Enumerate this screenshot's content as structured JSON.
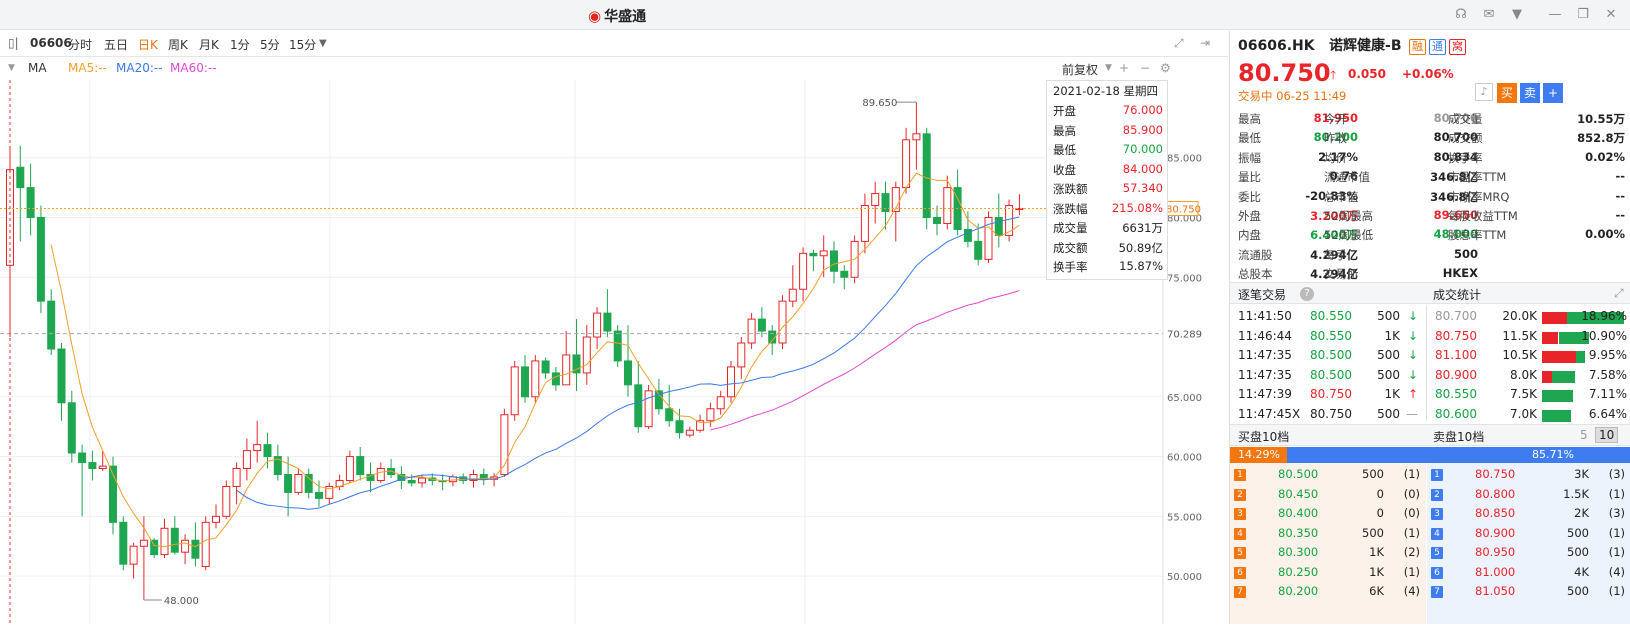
{
  "titlebar": {
    "brand": "华盛通",
    "brand_mark": "logo-swirl"
  },
  "toolbar": {
    "code": "06606",
    "periods": [
      "分时",
      "五日",
      "日K",
      "周K",
      "月K",
      "1分",
      "5分",
      "15分"
    ],
    "active_period": "日K",
    "adjust": "前复权"
  },
  "ma": {
    "label": "MA",
    "ma5": "MA5:--",
    "ma20": "MA20:--",
    "ma60": "MA60:--",
    "colors": {
      "ma5": "#f0a02a",
      "ma20": "#3a79e8",
      "ma60": "#e34bd0"
    }
  },
  "tooltip": {
    "date": "2021-02-18 星期四",
    "rows": [
      {
        "k": "开盘",
        "v": "76.000",
        "c": "red"
      },
      {
        "k": "最高",
        "v": "85.900",
        "c": "red"
      },
      {
        "k": "最低",
        "v": "70.000",
        "c": "green"
      },
      {
        "k": "收盘",
        "v": "84.000",
        "c": "red"
      },
      {
        "k": "涨跌额",
        "v": "57.340",
        "c": "red"
      },
      {
        "k": "涨跌幅",
        "v": "215.08%",
        "c": "red"
      },
      {
        "k": "成交量",
        "v": "6631万",
        "c": "dark"
      },
      {
        "k": "成交额",
        "v": "50.89亿",
        "c": "dark"
      },
      {
        "k": "换手率",
        "v": "15.87%",
        "c": "dark"
      }
    ]
  },
  "chart_data": {
    "type": "candlestick",
    "y_ticks": [
      85.0,
      80.0,
      75.0,
      65.0,
      60.0,
      55.0,
      50.0
    ],
    "y_tick_labels": [
      "85.000",
      "80.000",
      "75.000",
      "65.000",
      "60.000",
      "55.000",
      "50.000"
    ],
    "ylim": [
      47.5,
      91
    ],
    "current_price_label": "80.750",
    "ref_line_label": "70.289",
    "high_label": "89.650",
    "low_label": "48.000",
    "colors": {
      "up": "#e8242a",
      "down": "#1ea651"
    },
    "candles": [
      [
        76.0,
        85.9,
        70.0,
        84.0
      ],
      [
        84.2,
        86.0,
        78.0,
        82.5
      ],
      [
        82.5,
        84.5,
        78.5,
        80.0
      ],
      [
        80.0,
        81.0,
        72.0,
        73.0
      ],
      [
        73.0,
        74.0,
        68.5,
        69.0
      ],
      [
        69.0,
        69.5,
        63.0,
        64.5
      ],
      [
        64.5,
        65.5,
        59.5,
        60.3
      ],
      [
        60.3,
        61.0,
        55.0,
        59.5
      ],
      [
        59.5,
        60.5,
        58.0,
        59.0
      ],
      [
        59.0,
        60.5,
        58.8,
        59.2
      ],
      [
        59.2,
        60.0,
        53.5,
        54.5
      ],
      [
        54.5,
        55.0,
        50.5,
        51.0
      ],
      [
        51.0,
        52.8,
        49.8,
        52.5
      ],
      [
        52.5,
        55.0,
        48.0,
        53.0
      ],
      [
        53.0,
        53.2,
        51.5,
        51.8
      ],
      [
        51.8,
        54.8,
        51.5,
        54.0
      ],
      [
        54.0,
        55.0,
        51.8,
        52.0
      ],
      [
        52.0,
        53.5,
        51.0,
        53.0
      ],
      [
        53.0,
        54.5,
        50.8,
        51.5
      ],
      [
        50.8,
        55.0,
        50.5,
        54.5
      ],
      [
        54.5,
        56.0,
        54.0,
        55.0
      ],
      [
        55.0,
        58.0,
        54.8,
        57.5
      ],
      [
        57.5,
        59.5,
        56.0,
        59.0
      ],
      [
        59.0,
        61.5,
        58.0,
        60.5
      ],
      [
        60.5,
        63.0,
        59.5,
        61.0
      ],
      [
        61.0,
        62.0,
        59.0,
        60.0
      ],
      [
        60.0,
        61.0,
        58.0,
        58.5
      ],
      [
        58.5,
        60.0,
        55.0,
        57.0
      ],
      [
        57.0,
        59.0,
        56.8,
        58.5
      ],
      [
        58.5,
        59.0,
        56.5,
        57.0
      ],
      [
        57.0,
        58.0,
        55.8,
        56.5
      ],
      [
        56.5,
        57.8,
        56.0,
        57.5
      ],
      [
        57.5,
        58.5,
        57.2,
        58.0
      ],
      [
        58.0,
        60.5,
        57.8,
        60.0
      ],
      [
        60.0,
        60.8,
        58.0,
        58.5
      ],
      [
        58.5,
        59.5,
        57.0,
        58.0
      ],
      [
        58.0,
        59.5,
        57.8,
        59.0
      ],
      [
        59.0,
        59.8,
        58.2,
        58.5
      ],
      [
        58.5,
        59.2,
        57.3,
        58.0
      ],
      [
        58.0,
        58.5,
        57.5,
        57.8
      ],
      [
        57.8,
        58.5,
        57.4,
        58.2
      ],
      [
        58.2,
        58.6,
        57.6,
        58.0
      ],
      [
        58.0,
        58.5,
        57.2,
        57.9
      ],
      [
        57.9,
        58.5,
        57.5,
        58.3
      ],
      [
        58.3,
        58.6,
        57.7,
        58.0
      ],
      [
        58.0,
        58.9,
        57.4,
        58.5
      ],
      [
        58.5,
        59.0,
        57.6,
        58.1
      ],
      [
        58.1,
        58.6,
        57.5,
        58.3
      ],
      [
        58.5,
        64.0,
        58.3,
        63.5
      ],
      [
        63.5,
        68.0,
        63.0,
        67.5
      ],
      [
        67.5,
        68.5,
        64.5,
        65.0
      ],
      [
        65.0,
        68.5,
        64.5,
        68.0
      ],
      [
        68.0,
        68.3,
        66.5,
        67.0
      ],
      [
        67.0,
        67.5,
        65.5,
        66.0
      ],
      [
        66.0,
        70.5,
        66.0,
        68.5
      ],
      [
        68.5,
        71.5,
        65.5,
        67.0
      ],
      [
        67.0,
        71.0,
        66.0,
        70.0
      ],
      [
        70.0,
        72.5,
        69.0,
        72.0
      ],
      [
        72.0,
        74.0,
        70.0,
        70.5
      ],
      [
        70.5,
        71.0,
        67.5,
        68.0
      ],
      [
        68.0,
        71.0,
        65.0,
        66.0
      ],
      [
        66.0,
        68.0,
        62.0,
        62.5
      ],
      [
        62.5,
        66.0,
        62.3,
        65.5
      ],
      [
        65.5,
        66.5,
        63.5,
        64.0
      ],
      [
        64.0,
        66.0,
        62.5,
        63.0
      ],
      [
        63.0,
        64.0,
        61.5,
        62.0
      ],
      [
        61.8,
        62.5,
        61.6,
        62.2
      ],
      [
        62.2,
        63.5,
        62.0,
        63.0
      ],
      [
        63.0,
        64.5,
        62.5,
        64.0
      ],
      [
        64.0,
        65.5,
        63.5,
        65.0
      ],
      [
        65.0,
        68.0,
        64.5,
        67.5
      ],
      [
        67.5,
        70.0,
        66.5,
        69.5
      ],
      [
        69.5,
        72.0,
        69.0,
        71.5
      ],
      [
        71.5,
        72.5,
        70.0,
        70.5
      ],
      [
        70.5,
        71.0,
        68.5,
        69.5
      ],
      [
        69.5,
        73.5,
        69.0,
        73.0
      ],
      [
        73.0,
        76.0,
        72.5,
        74.0
      ],
      [
        74.0,
        77.5,
        73.0,
        77.0
      ],
      [
        77.0,
        77.3,
        75.5,
        76.8
      ],
      [
        76.8,
        78.5,
        75.0,
        77.2
      ],
      [
        77.2,
        78.0,
        74.5,
        75.5
      ],
      [
        75.5,
        76.0,
        74.0,
        75.0
      ],
      [
        75.0,
        78.5,
        74.5,
        78.0
      ],
      [
        78.0,
        82.0,
        77.0,
        81.0
      ],
      [
        81.0,
        83.0,
        79.5,
        82.0
      ],
      [
        82.0,
        83.0,
        79.0,
        80.5
      ],
      [
        80.5,
        83.0,
        78.0,
        82.5
      ],
      [
        82.5,
        87.5,
        82.0,
        86.5
      ],
      [
        86.5,
        89.65,
        84.0,
        87.0
      ],
      [
        87.0,
        87.5,
        79.0,
        80.0
      ],
      [
        80.0,
        81.0,
        78.5,
        79.5
      ],
      [
        79.5,
        83.5,
        79.0,
        82.5
      ],
      [
        82.5,
        84.0,
        78.5,
        79.0
      ],
      [
        79.0,
        80.5,
        77.5,
        78.0
      ],
      [
        78.0,
        79.5,
        76.0,
        76.5
      ],
      [
        76.5,
        80.5,
        76.2,
        80.0
      ],
      [
        80.0,
        82.0,
        77.5,
        78.5
      ],
      [
        78.5,
        81.5,
        78.0,
        81.0
      ],
      [
        80.7,
        81.95,
        80.2,
        80.75
      ]
    ]
  },
  "quote": {
    "code": "06606.HK",
    "name": "诺辉健康-B",
    "badges": [
      "融",
      "通",
      "窝"
    ],
    "price": "80.750",
    "change": "0.050",
    "change_pct": "+0.06%",
    "status": "交易中 06-25 11:49",
    "actions": [
      "买",
      "卖",
      "+"
    ]
  },
  "stats": [
    [
      {
        "k": "最高",
        "v": "81.950",
        "c": "red"
      },
      {
        "k": "今开",
        "v": "80.700",
        "c": "gray"
      },
      {
        "k": "成交量",
        "v": "10.55万",
        "c": "dark"
      }
    ],
    [
      {
        "k": "最低",
        "v": "80.200",
        "c": "green"
      },
      {
        "k": "昨收",
        "v": "80.700",
        "c": "dark"
      },
      {
        "k": "成交额",
        "v": "852.8万",
        "c": "dark"
      }
    ],
    [
      {
        "k": "振幅",
        "v": "2.17%",
        "c": "dark"
      },
      {
        "k": "均价",
        "v": "80.834",
        "c": "dark"
      },
      {
        "k": "换手率",
        "v": "0.02%",
        "c": "dark"
      }
    ],
    [
      {
        "k": "量比",
        "v": "0.76",
        "c": "dark"
      },
      {
        "k": "流通市值",
        "v": "346.8亿",
        "c": "dark"
      },
      {
        "k": "市盈率TTM",
        "v": "--",
        "c": "dark"
      }
    ],
    [
      {
        "k": "委比",
        "v": "-20.83%",
        "c": "dark"
      },
      {
        "k": "总市值",
        "v": "346.8亿",
        "c": "dark"
      },
      {
        "k": "市净率MRQ",
        "v": "--",
        "c": "dark"
      }
    ],
    [
      {
        "k": "外盘",
        "v": "3.200万",
        "c": "red"
      },
      {
        "k": "52周最高",
        "v": "89.650",
        "c": "red"
      },
      {
        "k": "每股收益TTM",
        "v": "--",
        "c": "dark"
      }
    ],
    [
      {
        "k": "内盘",
        "v": "6.400万",
        "c": "green"
      },
      {
        "k": "52周最低",
        "v": "48.000",
        "c": "green"
      },
      {
        "k": "股息率TTM",
        "v": "0.00%",
        "c": "dark"
      }
    ],
    [
      {
        "k": "流通股",
        "v": "4.294亿",
        "c": "dark"
      },
      {
        "k": "每手",
        "v": "500",
        "c": "dark"
      }
    ],
    [
      {
        "k": "总股本",
        "v": "4.294亿",
        "c": "dark"
      },
      {
        "k": "交易所",
        "v": "HKEX",
        "c": "dark"
      }
    ]
  ],
  "ticks": {
    "title": "逐笔交易",
    "rows": [
      {
        "t": "11:41:50",
        "flag": "",
        "p": "80.550",
        "q": "500",
        "dir": "down"
      },
      {
        "t": "11:46:44",
        "flag": "",
        "p": "80.550",
        "q": "1K",
        "dir": "down"
      },
      {
        "t": "11:47:35",
        "flag": "",
        "p": "80.500",
        "q": "500",
        "dir": "down"
      },
      {
        "t": "11:47:35",
        "flag": "",
        "p": "80.500",
        "q": "500",
        "dir": "down"
      },
      {
        "t": "11:47:39",
        "flag": "",
        "p": "80.750",
        "q": "1K",
        "dir": "up"
      },
      {
        "t": "11:47:45",
        "flag": "X",
        "p": "80.750",
        "q": "500",
        "dir": "flat"
      }
    ]
  },
  "volstats": {
    "title": "成交统计",
    "rows": [
      {
        "p": "80.700",
        "c": "gray",
        "v": "20.0K",
        "pct": "18.96%",
        "ratio": 1.0,
        "buy": 0.3
      },
      {
        "p": "80.750",
        "c": "red",
        "v": "11.5K",
        "pct": "10.90%",
        "ratio": 0.575,
        "buy": 0.35
      },
      {
        "p": "81.100",
        "c": "red",
        "v": "10.5K",
        "pct": "9.95%",
        "ratio": 0.525,
        "buy": 0.8
      },
      {
        "p": "80.900",
        "c": "red",
        "v": "8.0K",
        "pct": "7.58%",
        "ratio": 0.4,
        "buy": 0.3
      },
      {
        "p": "80.550",
        "c": "green",
        "v": "7.5K",
        "pct": "7.11%",
        "ratio": 0.375,
        "buy": 0.0
      },
      {
        "p": "80.600",
        "c": "green",
        "v": "7.0K",
        "pct": "6.64%",
        "ratio": 0.35,
        "buy": 0.0
      }
    ]
  },
  "orderbook": {
    "bid_title": "买盘10档",
    "ask_title": "卖盘10档",
    "depth_options": [
      "5",
      "10"
    ],
    "depth_active": "10",
    "bid_pct": "14.29%",
    "ask_pct": "85.71%",
    "bid_ratio": 0.1429,
    "bids": [
      {
        "n": "1",
        "p": "80.500",
        "q": "500",
        "o": "(1)"
      },
      {
        "n": "2",
        "p": "80.450",
        "q": "0",
        "o": "(0)"
      },
      {
        "n": "3",
        "p": "80.400",
        "q": "0",
        "o": "(0)"
      },
      {
        "n": "4",
        "p": "80.350",
        "q": "500",
        "o": "(1)"
      },
      {
        "n": "5",
        "p": "80.300",
        "q": "1K",
        "o": "(2)"
      },
      {
        "n": "6",
        "p": "80.250",
        "q": "1K",
        "o": "(1)"
      },
      {
        "n": "7",
        "p": "80.200",
        "q": "6K",
        "o": "(4)"
      }
    ],
    "asks": [
      {
        "n": "1",
        "p": "80.750",
        "q": "3K",
        "o": "(3)"
      },
      {
        "n": "2",
        "p": "80.800",
        "q": "1.5K",
        "o": "(1)"
      },
      {
        "n": "3",
        "p": "80.850",
        "q": "2K",
        "o": "(3)"
      },
      {
        "n": "4",
        "p": "80.900",
        "q": "500",
        "o": "(1)"
      },
      {
        "n": "5",
        "p": "80.950",
        "q": "500",
        "o": "(1)"
      },
      {
        "n": "6",
        "p": "81.000",
        "q": "4K",
        "o": "(4)"
      },
      {
        "n": "7",
        "p": "81.050",
        "q": "500",
        "o": "(1)"
      }
    ]
  }
}
